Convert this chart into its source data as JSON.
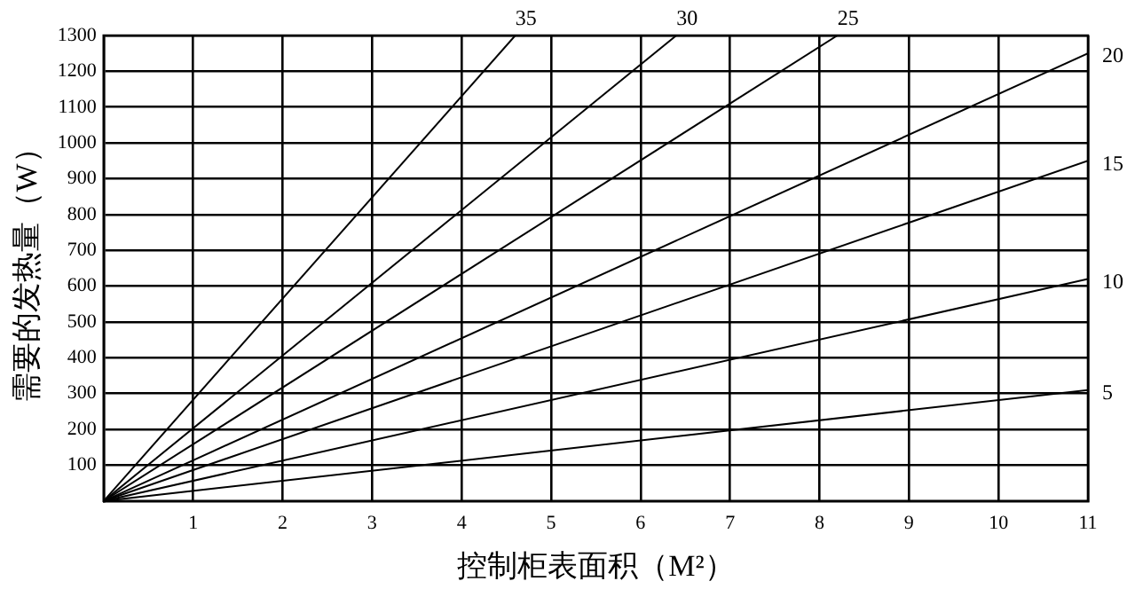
{
  "chart_data": {
    "type": "line",
    "xlabel": "控制柜表面积（M²）",
    "ylabel": "需要的发热量（W）",
    "xlim": [
      0,
      11
    ],
    "xticks": [
      1,
      2,
      3,
      4,
      5,
      6,
      7,
      8,
      9,
      10,
      11
    ],
    "ylim": [
      0,
      1300
    ],
    "yticks": [
      100,
      200,
      300,
      400,
      500,
      600,
      700,
      800,
      900,
      1000,
      1100,
      1200,
      1300
    ],
    "grid": true,
    "legend": false,
    "marker": "none",
    "line_style": "solid",
    "series": [
      {
        "name": "35",
        "color": "#000000",
        "x": [
          0,
          4.6
        ],
        "values": [
          0,
          1300
        ]
      },
      {
        "name": "30",
        "color": "#000000",
        "x": [
          0,
          6.4
        ],
        "values": [
          0,
          1300
        ]
      },
      {
        "name": "25",
        "color": "#000000",
        "x": [
          0,
          8.2
        ],
        "values": [
          0,
          1300
        ]
      },
      {
        "name": "20",
        "color": "#000000",
        "x": [
          0,
          11
        ],
        "values": [
          0,
          1250
        ]
      },
      {
        "name": "15",
        "color": "#000000",
        "x": [
          0,
          11
        ],
        "values": [
          0,
          950
        ]
      },
      {
        "name": "10",
        "color": "#000000",
        "x": [
          0,
          11
        ],
        "values": [
          0,
          620
        ]
      },
      {
        "name": "5",
        "color": "#000000",
        "x": [
          0,
          11
        ],
        "values": [
          0,
          310
        ]
      }
    ]
  }
}
